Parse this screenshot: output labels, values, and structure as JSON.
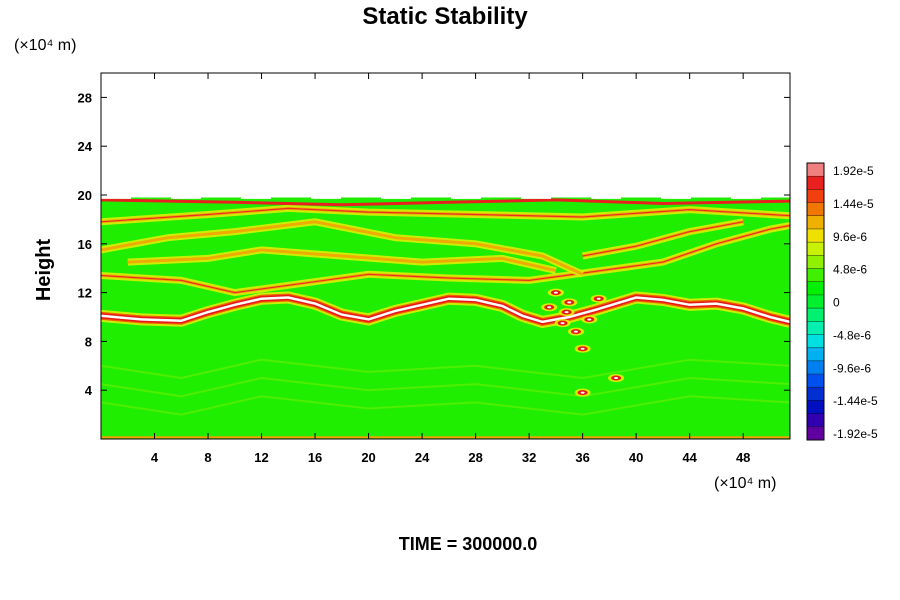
{
  "chart_data": {
    "type": "heatmap",
    "title": "Static Stability",
    "ylabel": "Height",
    "x_unit": "(×10⁴ m)",
    "y_unit": "(×10⁴ m)",
    "footer": "TIME = 300000.0",
    "xlim": [
      0,
      51.5
    ],
    "ylim": [
      0,
      30
    ],
    "x_ticks": [
      4,
      8,
      12,
      16,
      20,
      24,
      28,
      32,
      36,
      40,
      44,
      48
    ],
    "y_ticks": [
      4,
      8,
      12,
      16,
      20,
      24,
      28
    ],
    "field_top": 19.8,
    "colorbar": {
      "labels": [
        "1.92e-5",
        "1.44e-5",
        "9.6e-6",
        "4.8e-6",
        "0",
        "-4.8e-6",
        "-9.6e-6",
        "-1.44e-5",
        "-1.92e-5"
      ],
      "colors": [
        "#f08080",
        "#e82020",
        "#f04010",
        "#f07800",
        "#f0b000",
        "#f0e000",
        "#c8f000",
        "#90f000",
        "#40f000",
        "#00f000",
        "#00f030",
        "#00f070",
        "#00f0b0",
        "#00e0e0",
        "#00b0f0",
        "#0080f0",
        "#0050f0",
        "#0030d0",
        "#0010c0",
        "#3000b0",
        "#6000a0"
      ]
    },
    "features": {
      "tropopause_line": [
        [
          0,
          10.1
        ],
        [
          3,
          9.8
        ],
        [
          6,
          9.7
        ],
        [
          8,
          10.4
        ],
        [
          10,
          11.0
        ],
        [
          12,
          11.5
        ],
        [
          14,
          11.6
        ],
        [
          16,
          11.1
        ],
        [
          18,
          10.2
        ],
        [
          20,
          9.8
        ],
        [
          22,
          10.5
        ],
        [
          24,
          11.0
        ],
        [
          26,
          11.5
        ],
        [
          28,
          11.4
        ],
        [
          30,
          10.9
        ],
        [
          31.5,
          10.1
        ],
        [
          33,
          9.6
        ],
        [
          35,
          10.0
        ],
        [
          37,
          10.6
        ],
        [
          40,
          11.6
        ],
        [
          42,
          11.4
        ],
        [
          44,
          11.0
        ],
        [
          46,
          11.1
        ],
        [
          48,
          10.7
        ],
        [
          50,
          10.0
        ],
        [
          51.5,
          9.6
        ]
      ],
      "upper_bands": [
        [
          [
            0,
            13.4
          ],
          [
            6,
            13.0
          ],
          [
            10,
            12.0
          ],
          [
            14,
            12.6
          ],
          [
            20,
            13.5
          ],
          [
            26,
            13.2
          ],
          [
            32,
            13.0
          ],
          [
            36,
            13.6
          ],
          [
            42,
            14.5
          ],
          [
            46,
            16.0
          ],
          [
            50,
            17.2
          ],
          [
            51.5,
            17.5
          ]
        ],
        [
          [
            0,
            15.5
          ],
          [
            5,
            16.5
          ],
          [
            10,
            17.0
          ],
          [
            16,
            17.8
          ],
          [
            22,
            16.5
          ],
          [
            28,
            16.0
          ],
          [
            33,
            15.0
          ],
          [
            36,
            13.5
          ]
        ],
        [
          [
            0,
            17.8
          ],
          [
            8,
            18.4
          ],
          [
            14,
            18.9
          ],
          [
            20,
            18.6
          ],
          [
            28,
            18.4
          ],
          [
            36,
            18.2
          ],
          [
            44,
            18.8
          ],
          [
            51.5,
            18.3
          ]
        ],
        [
          [
            2,
            14.5
          ],
          [
            8,
            14.8
          ],
          [
            12,
            15.5
          ],
          [
            18,
            15.0
          ],
          [
            24,
            14.5
          ],
          [
            30,
            14.8
          ],
          [
            34,
            13.8
          ]
        ],
        [
          [
            36,
            15.0
          ],
          [
            40,
            15.8
          ],
          [
            44,
            17.0
          ],
          [
            48,
            17.8
          ]
        ]
      ],
      "scattered_patches": [
        [
          34,
          12.0
        ],
        [
          35,
          11.2
        ],
        [
          33.5,
          10.8
        ],
        [
          34.5,
          9.5
        ],
        [
          35.5,
          8.8
        ],
        [
          36.0,
          7.4
        ],
        [
          38.5,
          5.0
        ],
        [
          36.0,
          3.8
        ],
        [
          34.8,
          10.4
        ],
        [
          36.5,
          9.8
        ],
        [
          37.2,
          11.5
        ]
      ]
    }
  }
}
